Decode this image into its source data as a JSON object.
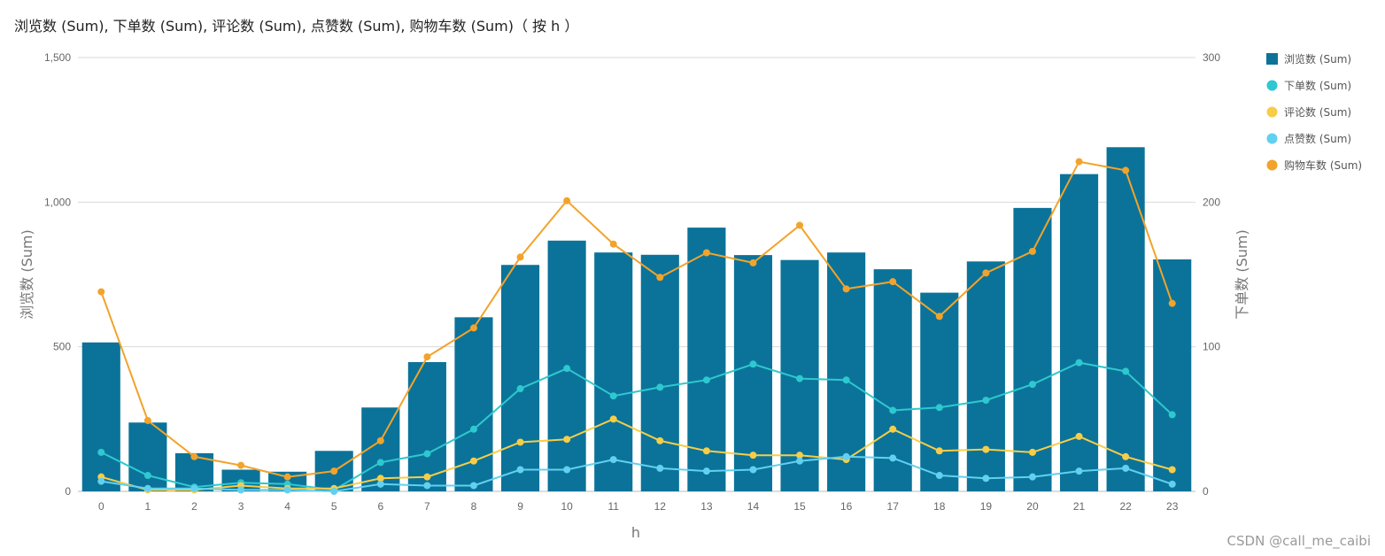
{
  "title": "浏览数 (Sum), 下单数 (Sum), 评论数 (Sum), 点赞数 (Sum), 购物车数 (Sum)（ 按 h ）",
  "watermark": "CSDN @call_me_caibi",
  "chart_data": {
    "type": "bar",
    "x": [
      0,
      1,
      2,
      3,
      4,
      5,
      6,
      7,
      8,
      9,
      10,
      11,
      12,
      13,
      14,
      15,
      16,
      17,
      18,
      19,
      20,
      21,
      22,
      23
    ],
    "xlabel": "h",
    "ylabel_left": "浏览数 (Sum)",
    "ylabel_right": "下单数 (Sum)",
    "y_left_lim": [
      0,
      1500
    ],
    "y_left_ticks": [
      0,
      500,
      1000,
      1500
    ],
    "y_left_tick_labels": [
      "0",
      "500",
      "1,000",
      "1,500"
    ],
    "y_right_lim": [
      0,
      300
    ],
    "y_right_ticks": [
      0,
      100,
      200,
      300
    ],
    "y_right_tick_labels": [
      "0",
      "100",
      "200",
      "300"
    ],
    "grid": true,
    "legend_position": "right",
    "series": [
      {
        "name": "浏览数 (Sum)",
        "type": "bar",
        "axis": "left",
        "color": "#0b7399",
        "values": [
          515,
          238,
          132,
          75,
          68,
          140,
          290,
          447,
          602,
          783,
          867,
          826,
          818,
          912,
          817,
          800,
          826,
          768,
          687,
          795,
          980,
          1097,
          1190,
          802
        ]
      },
      {
        "name": "下单数 (Sum)",
        "type": "line",
        "axis": "right",
        "color": "#2ec8d0",
        "values": [
          27,
          11,
          3,
          6,
          5,
          1,
          20,
          26,
          43,
          71,
          85,
          66,
          72,
          77,
          88,
          78,
          77,
          56,
          58,
          63,
          74,
          89,
          83,
          53
        ]
      },
      {
        "name": "评论数 (Sum)",
        "type": "line",
        "axis": "right",
        "color": "#f7cd48",
        "values": [
          10,
          1,
          1,
          4,
          2,
          2,
          9,
          10,
          21,
          34,
          36,
          50,
          35,
          28,
          25,
          25,
          22,
          43,
          28,
          29,
          27,
          38,
          24,
          15
        ]
      },
      {
        "name": "点赞数 (Sum)",
        "type": "line",
        "axis": "right",
        "color": "#62d0f0",
        "values": [
          7,
          2,
          2,
          1,
          1,
          0,
          5,
          4,
          4,
          15,
          15,
          22,
          16,
          14,
          15,
          21,
          24,
          23,
          11,
          9,
          10,
          14,
          16,
          5
        ]
      },
      {
        "name": "购物车数 (Sum)",
        "type": "line",
        "axis": "right",
        "color": "#f2a32b",
        "values": [
          138,
          49,
          24,
          18,
          10,
          14,
          35,
          93,
          113,
          162,
          201,
          171,
          148,
          165,
          158,
          184,
          140,
          145,
          121,
          151,
          166,
          228,
          222,
          130
        ]
      }
    ]
  }
}
